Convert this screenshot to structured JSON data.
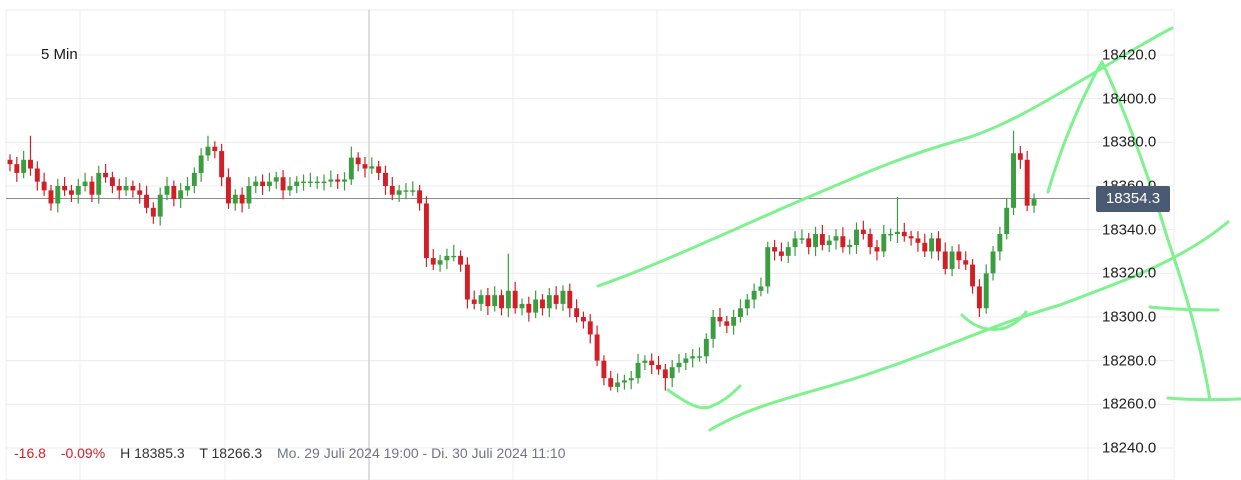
{
  "interval_label": "5 Min",
  "footer": {
    "change_abs": "-16.8",
    "change_pct": "-0.09%",
    "high": "H 18385.3",
    "low": "T 18266.3",
    "range": "Mo. 29 Juli 2024 19:00 - Di. 30 Juli 2024 11:10"
  },
  "current_price_label": "18354.3",
  "colors": {
    "up": "#3a9d3f",
    "down": "#d21f26",
    "annotation": "#7ef28f",
    "badge": "#4a5a72"
  },
  "chart_data": {
    "type": "candlestick",
    "y_ticks": [
      "18420.0",
      "18400.0",
      "18380.0",
      "18360.0",
      "18340.0",
      "18320.0",
      "18300.0",
      "18280.0",
      "18260.0",
      "18240.0"
    ],
    "ylim": [
      18234,
      18436
    ],
    "current_price": 18354.3,
    "closes": [
      18370,
      18366,
      18372,
      18368,
      18362,
      18358,
      18352,
      18360,
      18358,
      18356,
      18360,
      18362,
      18356,
      18366,
      18364,
      18360,
      18358,
      18360,
      18358,
      18356,
      18350,
      18346,
      18356,
      18360,
      18354,
      18358,
      18360,
      18366,
      18374,
      18378,
      18376,
      18364,
      18352,
      18356,
      18352,
      18360,
      18362,
      18360,
      18362,
      18364,
      18358,
      18360,
      18362,
      18362,
      18362,
      18362,
      18362,
      18363,
      18362,
      18363,
      18373,
      18370,
      18368,
      18369,
      18366,
      18360,
      18356,
      18358,
      18358,
      18358,
      18352,
      18327,
      18324,
      18326,
      18328,
      18328,
      18324,
      18308,
      18306,
      18310,
      18305,
      18310,
      18304,
      18312,
      18304,
      18306,
      18302,
      18308,
      18304,
      18310,
      18306,
      18312,
      18304,
      18300,
      18298,
      18292,
      18280,
      18272,
      18268,
      18270,
      18271,
      18272,
      18279,
      18280,
      18278,
      18276,
      18272,
      18277,
      18279,
      18281,
      18282,
      18282,
      18290,
      18300,
      18298,
      18296,
      18300,
      18304,
      18308,
      18312,
      18314,
      18332,
      18330,
      18328,
      18332,
      18336,
      18336,
      18332,
      18338,
      18333,
      18335,
      18337,
      18332,
      18333,
      18340,
      18338,
      18332,
      18330,
      18338,
      18338,
      18339,
      18337,
      18336,
      18334,
      18330,
      18336,
      18330,
      18322,
      18330,
      18326,
      18324,
      18314,
      18304,
      18320,
      18330,
      18338,
      18350,
      18375,
      18372,
      18351,
      18354
    ],
    "highs": [
      null,
      null,
      null,
      18383,
      null,
      null,
      null,
      null,
      null,
      null,
      null,
      null,
      null,
      null,
      null,
      null,
      null,
      null,
      null,
      null,
      null,
      null,
      null,
      null,
      null,
      null,
      null,
      null,
      null,
      18383,
      null,
      null,
      null,
      null,
      null,
      null,
      null,
      null,
      null,
      null,
      null,
      null,
      null,
      null,
      null,
      null,
      null,
      null,
      null,
      null,
      18378,
      null,
      null,
      null,
      null,
      null,
      null,
      null,
      null,
      null,
      null,
      null,
      null,
      null,
      null,
      18333,
      null,
      null,
      null,
      null,
      null,
      null,
      null,
      18329,
      null,
      null,
      null,
      null,
      null,
      null,
      null,
      null,
      null,
      null,
      null,
      null,
      null,
      null,
      null,
      null,
      null,
      null,
      null,
      null,
      null,
      null,
      null,
      null,
      null,
      null,
      null,
      null,
      null,
      null,
      null,
      null,
      null,
      null,
      null,
      null,
      null,
      null,
      null,
      null,
      null,
      null,
      null,
      null,
      null,
      null,
      null,
      null,
      null,
      null,
      null,
      null,
      null,
      null,
      null,
      null,
      18355,
      null,
      null,
      null,
      null,
      null,
      null,
      null,
      null,
      null,
      null,
      null,
      null,
      null,
      null,
      null,
      null,
      18385.3,
      null,
      null,
      null
    ],
    "lows": [
      null,
      null,
      null,
      null,
      null,
      null,
      null,
      null,
      null,
      null,
      null,
      null,
      null,
      null,
      null,
      null,
      null,
      null,
      null,
      null,
      null,
      null,
      null,
      null,
      null,
      null,
      null,
      null,
      null,
      null,
      null,
      null,
      null,
      null,
      null,
      null,
      null,
      null,
      null,
      null,
      null,
      null,
      null,
      null,
      null,
      null,
      null,
      null,
      null,
      null,
      null,
      null,
      null,
      null,
      null,
      null,
      null,
      null,
      null,
      null,
      null,
      null,
      null,
      null,
      null,
      null,
      null,
      null,
      null,
      null,
      null,
      null,
      null,
      null,
      null,
      null,
      null,
      null,
      null,
      null,
      null,
      null,
      null,
      null,
      null,
      null,
      null,
      null,
      18266.3,
      null,
      null,
      null,
      null,
      null,
      null,
      null,
      18266.3,
      null,
      null,
      null,
      null,
      null,
      null,
      null,
      null,
      null,
      null,
      null,
      null,
      null,
      null,
      null,
      null,
      null,
      null,
      null,
      null,
      null,
      null,
      null,
      null,
      null,
      null,
      null,
      null,
      null,
      null,
      null,
      null,
      null,
      null,
      null,
      null,
      null,
      null,
      null,
      null,
      null,
      null,
      null,
      null,
      null,
      18300,
      null,
      null,
      null,
      null,
      null,
      null,
      null,
      null
    ]
  }
}
